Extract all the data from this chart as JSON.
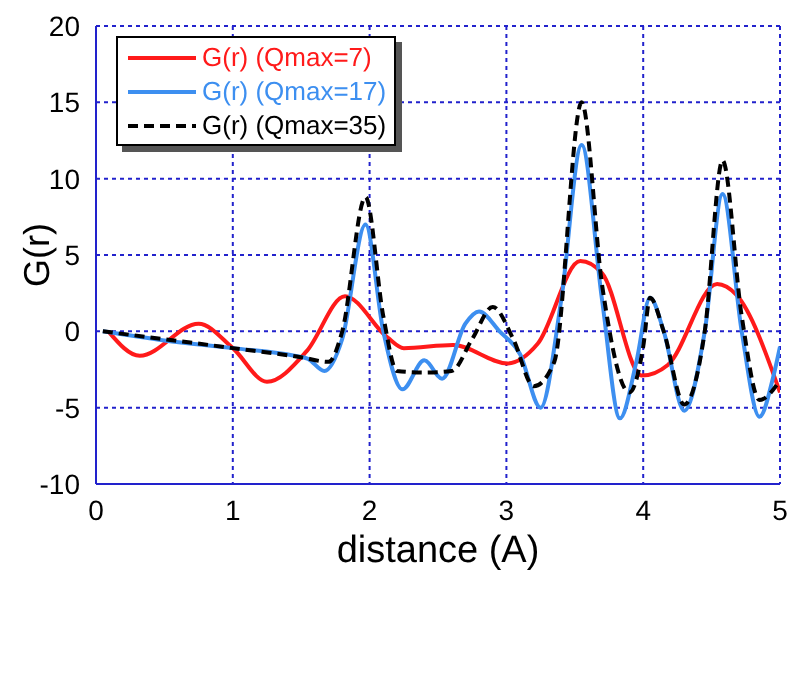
{
  "chart_data": {
    "type": "line",
    "xlabel": "distance (A)",
    "ylabel": "G(r)",
    "xlim": [
      0,
      5
    ],
    "xticks": [
      0,
      1,
      2,
      3,
      4,
      5
    ],
    "ylim": [
      -10,
      20
    ],
    "yticks": [
      -10,
      -5,
      0,
      5,
      10,
      15,
      20
    ],
    "grid": true,
    "legend": "top left",
    "marker": "none",
    "series": [
      {
        "name": "G(r) (Qmax=7)",
        "color": "#ff1a1a",
        "line_style": "solid",
        "x": [
          0.09,
          0.32,
          0.75,
          1,
          1.25,
          1.54,
          1.82,
          2.13,
          2.25,
          2.61,
          3.01,
          3.23,
          3.54,
          3.7,
          3.99,
          4.18,
          4.54,
          4.68,
          5
        ],
        "values": [
          0,
          -1.6,
          0.5,
          -1.1,
          -3.3,
          -1.3,
          2.3,
          -0.4,
          -1.1,
          -0.9,
          -2.1,
          -0.8,
          4.6,
          3.8,
          -2.9,
          -2.2,
          3.1,
          2.4,
          -4
        ]
      },
      {
        "name": "G(r) (Qmax=17)",
        "color": "#3d8ff0",
        "line_style": "solid",
        "x": [
          0.05,
          0.5,
          1,
          1.45,
          1.55,
          1.67,
          1.8,
          1.97,
          2.1,
          2.24,
          2.4,
          2.53,
          2.7,
          2.8,
          2.95,
          3.1,
          3.25,
          3.4,
          3.55,
          3.7,
          3.83,
          3.95,
          4.05,
          4.15,
          4.3,
          4.45,
          4.58,
          4.72,
          4.85,
          4.95,
          5
        ],
        "values": [
          0,
          -0.6,
          -1.1,
          -1.6,
          -1.8,
          -2.6,
          -0.5,
          7,
          0,
          -3.8,
          -1.9,
          -3.1,
          0.5,
          1.3,
          0,
          -1.5,
          -5,
          2,
          12.2,
          2,
          -5.7,
          -2,
          2.2,
          0,
          -5.2,
          0,
          9,
          0,
          -5.6,
          -3,
          -1
        ]
      },
      {
        "name": "G(r) (Qmax=35)",
        "color": "#000000",
        "line_style": "dashed",
        "x": [
          0.05,
          1,
          1.5,
          1.7,
          1.8,
          1.97,
          2.1,
          2.2,
          2.4,
          2.6,
          2.75,
          2.9,
          3.05,
          3.2,
          3.35,
          3.55,
          3.7,
          3.9,
          4,
          4.05,
          4.15,
          4.3,
          4.45,
          4.58,
          4.72,
          4.85,
          5
        ],
        "values": [
          0,
          -1.1,
          -1.7,
          -2,
          0,
          8.8,
          1,
          -2.6,
          -2.7,
          -2.6,
          -0.5,
          1.6,
          -0.5,
          -3.6,
          -2,
          15,
          3,
          -4,
          -1,
          2.2,
          0,
          -4.8,
          0,
          11.2,
          1,
          -4.5,
          -3.2
        ]
      }
    ]
  }
}
